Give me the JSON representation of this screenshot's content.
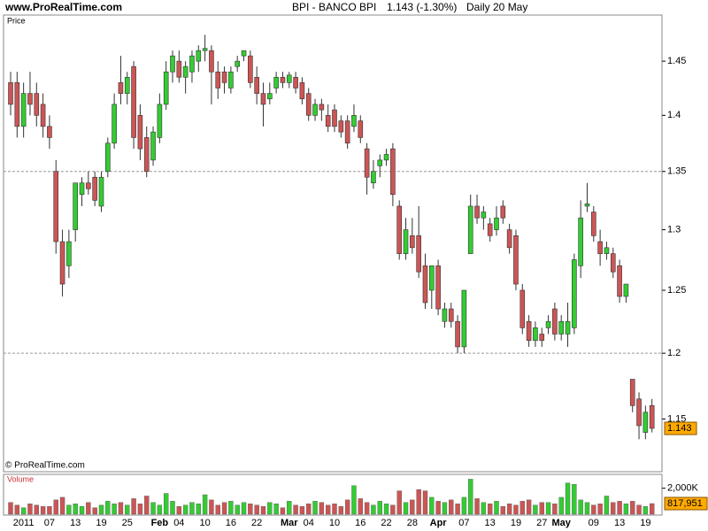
{
  "header": {
    "site": "www.ProRealTime.com",
    "instrument": "BPI - BANCO BPI",
    "quote": "1.143 (-1.30%)",
    "period": "Daily  20 May"
  },
  "copyright": "© ProRealTime.com",
  "chart_data": [
    {
      "type": "candlestick",
      "panel_label": "Price",
      "log_scale": true,
      "up_color": "#33cc33",
      "down_color": "#cc5555",
      "line_color": "#888888",
      "ylim": [
        1.112,
        1.494
      ],
      "yticks": [
        1.15,
        1.2,
        1.25,
        1.3,
        1.35,
        1.4,
        1.45
      ],
      "horizontal_lines": [
        1.35,
        1.2
      ],
      "categories": [
        null,
        null,
        "2011",
        null,
        null,
        null,
        "07",
        null,
        null,
        null,
        "13",
        null,
        null,
        null,
        "19",
        null,
        null,
        null,
        "25",
        null,
        null,
        null,
        null,
        "Feb",
        null,
        null,
        "04",
        null,
        null,
        null,
        "10",
        null,
        null,
        null,
        "16",
        null,
        null,
        null,
        "22",
        null,
        null,
        null,
        null,
        "Mar",
        null,
        null,
        "04",
        null,
        null,
        null,
        "10",
        null,
        null,
        null,
        "16",
        null,
        null,
        null,
        "22",
        null,
        null,
        null,
        "28",
        null,
        null,
        null,
        "Apr",
        null,
        null,
        null,
        "07",
        null,
        null,
        null,
        "13",
        null,
        null,
        null,
        "19",
        null,
        null,
        null,
        "27",
        null,
        null,
        "May",
        null,
        null,
        null,
        null,
        "09",
        null,
        null,
        null,
        "13",
        null,
        null,
        null,
        "19",
        null
      ],
      "open": [
        1.43,
        1.43,
        1.39,
        1.42,
        1.42,
        1.41,
        1.39,
        1.35,
        1.29,
        1.27,
        1.3,
        1.33,
        1.34,
        1.345,
        1.32,
        1.35,
        1.375,
        1.43,
        1.42,
        1.445,
        1.4,
        1.38,
        1.36,
        1.38,
        1.41,
        1.44,
        1.45,
        1.435,
        1.44,
        1.45,
        1.46,
        1.46,
        1.44,
        1.44,
        1.425,
        1.445,
        1.455,
        1.455,
        1.435,
        1.42,
        1.415,
        1.425,
        1.435,
        1.43,
        1.435,
        1.43,
        1.42,
        1.4,
        1.41,
        1.4,
        1.405,
        1.395,
        1.395,
        1.39,
        1.395,
        1.37,
        1.34,
        1.355,
        1.36,
        1.37,
        1.32,
        1.28,
        1.295,
        1.295,
        1.27,
        1.25,
        1.27,
        1.225,
        1.235,
        1.225,
        1.205,
        1.28,
        1.32,
        1.31,
        1.305,
        1.3,
        1.32,
        1.3,
        1.295,
        1.25,
        1.225,
        1.21,
        1.215,
        1.22,
        1.235,
        1.215,
        1.215,
        1.22,
        1.27,
        1.32,
        1.315,
        1.29,
        1.28,
        1.28,
        1.27,
        1.245,
        1.18,
        1.165,
        1.14,
        1.16
      ],
      "high": [
        1.44,
        1.44,
        1.43,
        1.44,
        1.43,
        1.42,
        1.4,
        1.36,
        1.3,
        1.3,
        1.34,
        1.345,
        1.35,
        1.35,
        1.35,
        1.38,
        1.42,
        1.455,
        1.44,
        1.45,
        1.41,
        1.39,
        1.39,
        1.42,
        1.45,
        1.46,
        1.46,
        1.45,
        1.46,
        1.465,
        1.475,
        1.465,
        1.45,
        1.445,
        1.445,
        1.455,
        1.46,
        1.46,
        1.445,
        1.43,
        1.43,
        1.44,
        1.44,
        1.44,
        1.44,
        1.435,
        1.425,
        1.415,
        1.415,
        1.41,
        1.41,
        1.4,
        1.4,
        1.41,
        1.4,
        1.375,
        1.36,
        1.365,
        1.37,
        1.375,
        1.325,
        1.31,
        1.31,
        1.32,
        1.28,
        1.27,
        1.275,
        1.24,
        1.24,
        1.23,
        1.25,
        1.33,
        1.33,
        1.32,
        1.31,
        1.32,
        1.325,
        1.305,
        1.3,
        1.255,
        1.23,
        1.225,
        1.22,
        1.23,
        1.24,
        1.23,
        1.24,
        1.28,
        1.325,
        1.34,
        1.32,
        1.3,
        1.29,
        1.285,
        1.275,
        1.255,
        1.18,
        1.17,
        1.16,
        1.165
      ],
      "low": [
        1.4,
        1.38,
        1.38,
        1.4,
        1.39,
        1.38,
        1.37,
        1.28,
        1.245,
        1.26,
        1.29,
        1.32,
        1.33,
        1.32,
        1.315,
        1.345,
        1.37,
        1.41,
        1.41,
        1.37,
        1.36,
        1.345,
        1.355,
        1.375,
        1.405,
        1.43,
        1.43,
        1.42,
        1.43,
        1.44,
        1.45,
        1.41,
        1.415,
        1.42,
        1.42,
        1.44,
        1.45,
        1.425,
        1.41,
        1.39,
        1.41,
        1.42,
        1.425,
        1.425,
        1.42,
        1.41,
        1.395,
        1.395,
        1.395,
        1.385,
        1.385,
        1.38,
        1.37,
        1.385,
        1.375,
        1.33,
        1.335,
        1.345,
        1.355,
        1.32,
        1.275,
        1.275,
        1.28,
        1.26,
        1.235,
        1.235,
        1.23,
        1.22,
        1.22,
        1.2,
        1.2,
        1.28,
        1.305,
        1.3,
        1.29,
        1.295,
        1.305,
        1.28,
        1.25,
        1.215,
        1.205,
        1.205,
        1.205,
        1.215,
        1.21,
        1.21,
        1.205,
        1.215,
        1.26,
        1.315,
        1.29,
        1.27,
        1.275,
        1.26,
        1.24,
        1.24,
        1.155,
        1.135,
        1.135,
        1.14
      ],
      "close": [
        1.41,
        1.39,
        1.42,
        1.41,
        1.4,
        1.39,
        1.38,
        1.29,
        1.255,
        1.29,
        1.34,
        1.34,
        1.335,
        1.325,
        1.345,
        1.375,
        1.41,
        1.42,
        1.435,
        1.38,
        1.37,
        1.35,
        1.385,
        1.41,
        1.44,
        1.455,
        1.435,
        1.445,
        1.455,
        1.46,
        1.462,
        1.44,
        1.425,
        1.43,
        1.44,
        1.45,
        1.46,
        1.43,
        1.42,
        1.41,
        1.42,
        1.435,
        1.43,
        1.437,
        1.425,
        1.415,
        1.4,
        1.41,
        1.405,
        1.39,
        1.39,
        1.385,
        1.375,
        1.4,
        1.38,
        1.345,
        1.35,
        1.36,
        1.365,
        1.33,
        1.28,
        1.3,
        1.285,
        1.265,
        1.24,
        1.27,
        1.235,
        1.235,
        1.225,
        1.205,
        1.25,
        1.32,
        1.31,
        1.315,
        1.295,
        1.31,
        1.31,
        1.285,
        1.255,
        1.22,
        1.21,
        1.22,
        1.21,
        1.225,
        1.215,
        1.225,
        1.225,
        1.275,
        1.31,
        1.322,
        1.295,
        1.28,
        1.285,
        1.265,
        1.245,
        1.255,
        1.16,
        1.145,
        1.155,
        1.143
      ]
    },
    {
      "type": "bar",
      "panel_label": "Volume",
      "ylim": [
        0,
        3000000
      ],
      "yticks": [
        {
          "value": 2000000,
          "label": "2,000K"
        }
      ],
      "last_label": "817,951",
      "values": [
        900000,
        700000,
        500000,
        800000,
        700000,
        600000,
        600000,
        1100000,
        1300000,
        700000,
        800000,
        600000,
        900000,
        500000,
        700000,
        1000000,
        800000,
        900000,
        700000,
        1200000,
        800000,
        1400000,
        900000,
        700000,
        1600000,
        1000000,
        600000,
        700000,
        900000,
        800000,
        1500000,
        1100000,
        700000,
        900000,
        1000000,
        700000,
        900000,
        800000,
        700000,
        600000,
        900000,
        800000,
        500000,
        1000000,
        700000,
        600000,
        800000,
        1000000,
        900000,
        700000,
        800000,
        600000,
        1100000,
        2200000,
        1200000,
        900000,
        700000,
        1000000,
        800000,
        700000,
        1800000,
        900000,
        1100000,
        1900000,
        1800000,
        1300000,
        1000000,
        900000,
        1100000,
        800000,
        1300000,
        2700000,
        1200000,
        900000,
        800000,
        1000000,
        600000,
        800000,
        700000,
        1000000,
        1100000,
        700000,
        900000,
        900000,
        800000,
        1300000,
        2400000,
        2300000,
        1100000,
        900000,
        700000,
        800000,
        1400000,
        900000,
        1000000,
        800000,
        1000000,
        700000,
        600000,
        817951
      ]
    }
  ]
}
